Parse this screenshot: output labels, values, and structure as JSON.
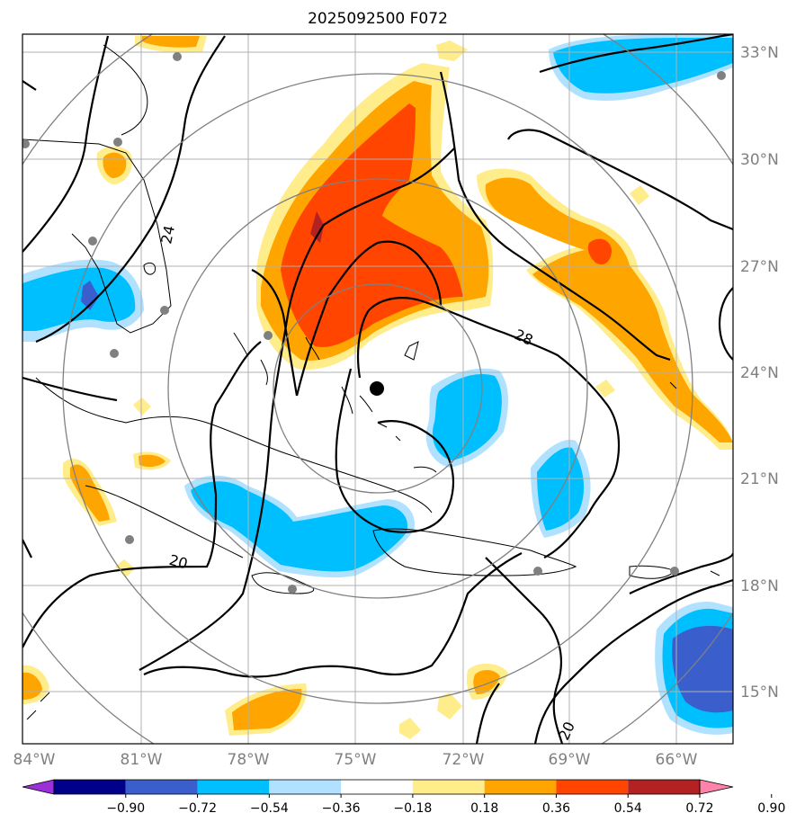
{
  "title": "2025092500 F072",
  "lon_labels": [
    "84°W",
    "81°W",
    "78°W",
    "75°W",
    "72°W",
    "69°W",
    "66°W"
  ],
  "lat_labels": [
    "33°N",
    "30°N",
    "27°N",
    "24°N",
    "21°N",
    "18°N",
    "15°N"
  ],
  "contour_labels": [
    "24",
    "28",
    "20",
    "20"
  ],
  "colorbar": {
    "ticks": [
      "−0.90",
      "−0.72",
      "−0.54",
      "−0.36",
      "−0.18",
      "0.18",
      "0.36",
      "0.54",
      "0.72",
      "0.90"
    ],
    "colors": [
      "#9b30d9",
      "#00008b",
      "#3a5fcd",
      "#00bfff",
      "#b0e2ff",
      "#ffffff",
      "#ffec8b",
      "#ffa500",
      "#ff4500",
      "#b22222",
      "#ff82ab"
    ]
  },
  "palette": {
    "light_yellow": "#ffec8b",
    "orange": "#ffa500",
    "red_orange": "#ff4500",
    "dark_red": "#b22222",
    "light_blue": "#b0e2ff",
    "blue": "#00bfff",
    "royal_blue": "#3a5fcd",
    "purple": "#9b30d9",
    "navy": "#00008b",
    "pink": "#ff82ab"
  }
}
